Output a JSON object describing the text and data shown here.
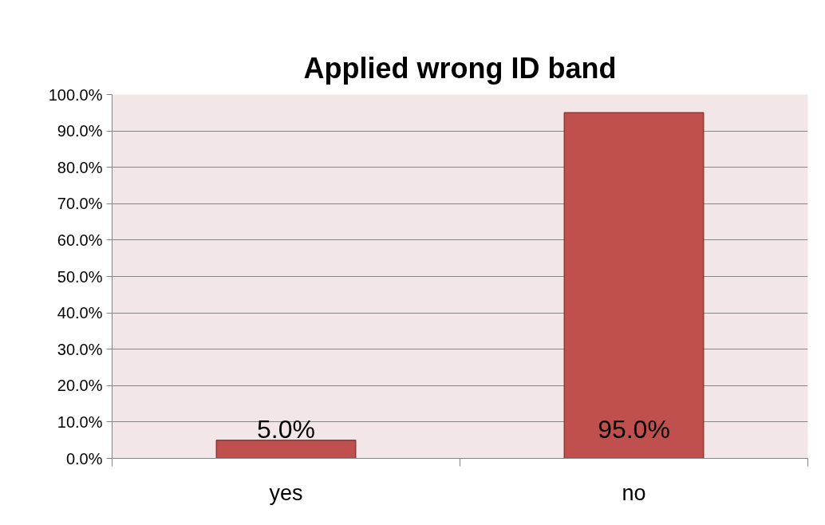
{
  "chart_data": {
    "type": "bar",
    "title": "Applied wrong ID band",
    "categories": [
      "yes",
      "no"
    ],
    "values": [
      5.0,
      95.0
    ],
    "color": "#c0504d",
    "value_labels": [
      "5.0%",
      "95.0%"
    ],
    "ylim": [
      0,
      100
    ],
    "yticks": [
      {
        "value": 0,
        "label": "0.0%"
      },
      {
        "value": 10,
        "label": "10.0%"
      },
      {
        "value": 20,
        "label": "20.0%"
      },
      {
        "value": 30,
        "label": "30.0%"
      },
      {
        "value": 40,
        "label": "40.0%"
      },
      {
        "value": 50,
        "label": "50.0%"
      },
      {
        "value": 60,
        "label": "60.0%"
      },
      {
        "value": 70,
        "label": "70.0%"
      },
      {
        "value": 80,
        "label": "80.0%"
      },
      {
        "value": 90,
        "label": "90.0%"
      },
      {
        "value": 100,
        "label": "100.0%"
      }
    ],
    "grid": "y"
  }
}
